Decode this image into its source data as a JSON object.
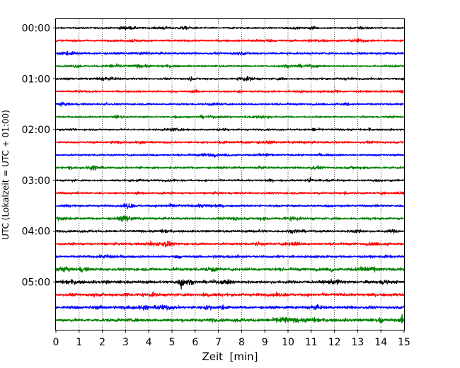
{
  "chart_data": {
    "type": "line",
    "title": "",
    "xlabel": "Zeit  [min]",
    "ylabel": "UTC (Lokalzeit = UTC + 01:00)",
    "xlim": [
      0,
      15
    ],
    "x_ticks": [
      0,
      1,
      2,
      3,
      4,
      5,
      6,
      7,
      8,
      9,
      10,
      11,
      12,
      13,
      14,
      15
    ],
    "row_minutes": 15,
    "y_tick_labels": [
      "00:00",
      "01:00",
      "02:00",
      "03:00",
      "04:00",
      "05:00"
    ],
    "grid": "vertical dotted",
    "trace_colors": [
      "#000000",
      "#ff0000",
      "#0000ff",
      "#008000"
    ],
    "traces": [
      {
        "start": "00:00",
        "amplitude": 0.12,
        "events": []
      },
      {
        "start": "00:15",
        "amplitude": 0.13,
        "events": []
      },
      {
        "start": "00:30",
        "amplitude": 0.14,
        "events": []
      },
      {
        "start": "00:45",
        "amplitude": 0.13,
        "events": []
      },
      {
        "start": "01:00",
        "amplitude": 0.13,
        "events": [
          {
            "t": 5.8,
            "amplitude": 0.3
          }
        ]
      },
      {
        "start": "01:15",
        "amplitude": 0.13,
        "events": []
      },
      {
        "start": "01:30",
        "amplitude": 0.13,
        "events": [
          {
            "t": 2.2,
            "amplitude": 0.3
          }
        ]
      },
      {
        "start": "01:45",
        "amplitude": 0.13,
        "events": []
      },
      {
        "start": "02:00",
        "amplitude": 0.13,
        "events": [
          {
            "t": 7.3,
            "amplitude": 0.35
          }
        ]
      },
      {
        "start": "02:15",
        "amplitude": 0.13,
        "events": []
      },
      {
        "start": "02:30",
        "amplitude": 0.13,
        "events": [
          {
            "t": 9.1,
            "amplitude": 0.35
          }
        ]
      },
      {
        "start": "02:45",
        "amplitude": 0.15,
        "events": []
      },
      {
        "start": "03:00",
        "amplitude": 0.13,
        "events": []
      },
      {
        "start": "03:15",
        "amplitude": 0.14,
        "events": []
      },
      {
        "start": "03:30",
        "amplitude": 0.14,
        "events": []
      },
      {
        "start": "03:45",
        "amplitude": 0.16,
        "events": []
      },
      {
        "start": "04:00",
        "amplitude": 0.15,
        "events": []
      },
      {
        "start": "04:15",
        "amplitude": 0.16,
        "events": []
      },
      {
        "start": "04:30",
        "amplitude": 0.16,
        "events": []
      },
      {
        "start": "04:45",
        "amplitude": 0.2,
        "events": [
          {
            "t": 11.9,
            "amplitude": 0.4
          }
        ]
      },
      {
        "start": "05:00",
        "amplitude": 0.2,
        "events": [
          {
            "t": 5.4,
            "amplitude": 1.1
          }
        ]
      },
      {
        "start": "05:15",
        "amplitude": 0.2,
        "events": []
      },
      {
        "start": "05:30",
        "amplitude": 0.18,
        "events": []
      },
      {
        "start": "05:45",
        "amplitude": 0.22,
        "events": [
          {
            "t": 14.0,
            "amplitude": 0.5
          },
          {
            "t": 14.9,
            "amplitude": 0.6
          }
        ]
      }
    ]
  }
}
